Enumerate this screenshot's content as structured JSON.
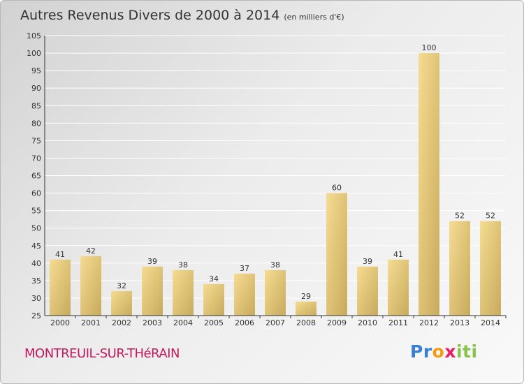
{
  "header": {
    "title": "Autres Revenus Divers de 2000 à 2014",
    "unit": "(en milliers d'€)"
  },
  "footer": {
    "place": "MONTREUIL-SUR-THéRAIN",
    "logo": "Proxiti"
  },
  "colors": {
    "bar_light": "#f5dc92",
    "bar_dark": "#c8aa5c",
    "grid": "#ffffff",
    "axis": "#333333"
  },
  "chart_data": {
    "type": "bar",
    "title": "Autres Revenus Divers de 2000 à 2014",
    "categories": [
      "2000",
      "2001",
      "2002",
      "2003",
      "2004",
      "2005",
      "2006",
      "2007",
      "2008",
      "2009",
      "2010",
      "2011",
      "2012",
      "2013",
      "2014"
    ],
    "values": [
      41,
      42,
      32,
      39,
      38,
      34,
      37,
      38,
      29,
      60,
      39,
      41,
      100,
      52,
      52
    ],
    "ylim": [
      25,
      105
    ],
    "yticks": [
      25,
      30,
      35,
      40,
      45,
      50,
      55,
      60,
      65,
      70,
      75,
      80,
      85,
      90,
      95,
      100,
      105
    ],
    "grid": true,
    "data_labels": true,
    "xlabel": "",
    "ylabel": ""
  }
}
